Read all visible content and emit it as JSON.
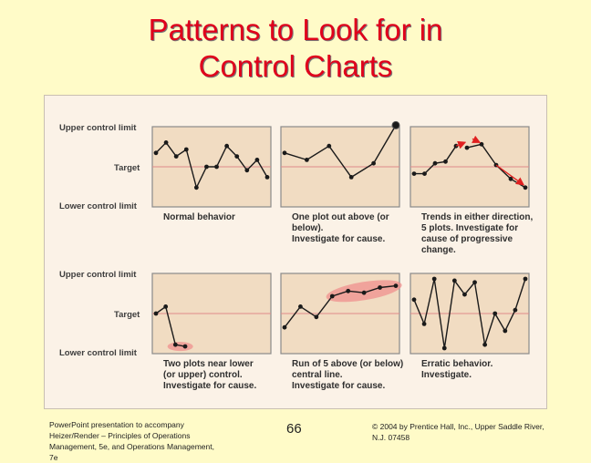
{
  "title": {
    "line1": "Patterns to Look for in",
    "line2": "Control Charts"
  },
  "figure": {
    "y_axis_labels": {
      "upper": "Upper control limit",
      "target": "Target",
      "lower": "Lower control limit"
    },
    "panels": [
      {
        "id": "normal",
        "caption": [
          "Normal behavior"
        ],
        "values": [
          0.4,
          0.7,
          0.3,
          0.5,
          -0.6,
          0.0,
          0.0,
          0.6,
          0.3,
          -0.1,
          0.2,
          -0.3
        ],
        "highlight": "none"
      },
      {
        "id": "one-out",
        "caption": [
          "One plot out above (or",
          "below).",
          "Investigate for cause."
        ],
        "values": [
          0.4,
          0.2,
          0.6,
          -0.3,
          0.1,
          1.2
        ],
        "highlight": "last-point-out"
      },
      {
        "id": "trends",
        "caption": [
          "Trends in either direction,",
          "5 plots. Investigate for",
          "cause of progressive",
          "change."
        ],
        "values_up": [
          -0.2,
          -0.2,
          0.1,
          0.15,
          0.6
        ],
        "values_down": [
          0.55,
          0.65,
          0.05,
          -0.35,
          -0.6
        ],
        "highlight": "arrows"
      },
      {
        "id": "near-limit",
        "caption": [
          "Two plots near lower",
          "(or upper) control.",
          "Investigate for cause."
        ],
        "values": [
          0.0,
          0.2,
          -0.9,
          -0.95
        ],
        "highlight": "near-lower"
      },
      {
        "id": "run-of-five",
        "caption": [
          "Run of 5 above (or below)",
          "central line.",
          "Investigate for cause."
        ],
        "values": [
          -0.4,
          0.2,
          -0.1,
          0.5,
          0.65,
          0.6,
          0.75,
          0.8
        ],
        "highlight": "run"
      },
      {
        "id": "erratic",
        "caption": [
          "Erratic behavior.",
          "Investigate."
        ],
        "values": [
          0.4,
          -0.3,
          1.0,
          -1.0,
          0.95,
          0.55,
          0.9,
          -0.9,
          0.0,
          -0.5,
          0.1,
          1.0
        ],
        "highlight": "none"
      }
    ]
  },
  "footer": {
    "left": [
      "PowerPoint presentation to accompany",
      "Heizer/Render – Principles of Operations",
      "Management, 5e, and Operations Management,",
      "7e"
    ],
    "page_number": "66",
    "right": [
      "© 2004 by Prentice Hall, Inc., Upper Saddle River,",
      "N.J. 07458"
    ]
  }
}
